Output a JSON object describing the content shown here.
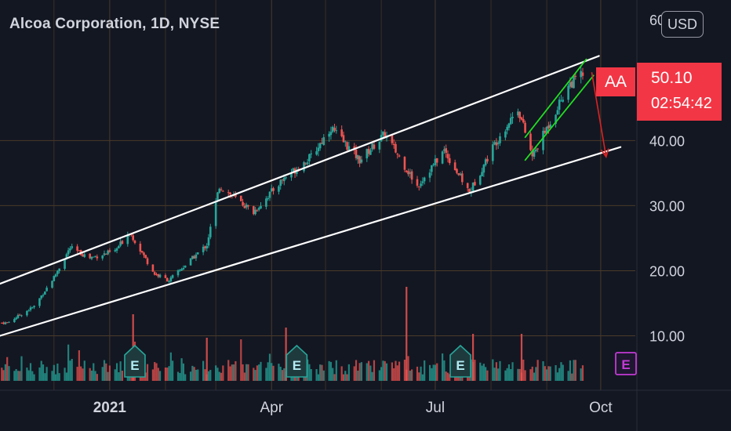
{
  "header": {
    "title": "Alcoa Corporation, 1D, NYSE",
    "currency": "USD",
    "top_partial_label": "60"
  },
  "price_tag": {
    "ticker": "AA",
    "last_price": "50.10",
    "countdown": "02:54:42"
  },
  "colors": {
    "background": "#131722",
    "up": "#26a69a",
    "down": "#ef5350",
    "grid": "#4a3a2a",
    "channel": "#ffffff",
    "wedge": "#22dd22",
    "arrow": "#dd2222",
    "earnings_teal": "#26a69a",
    "earnings_purple": "#c33ad3",
    "tag": "#f23645"
  },
  "icons": {
    "earnings_past": "earnings-e-icon",
    "earnings_future": "earnings-e-future-icon"
  },
  "chart_data": {
    "type": "candlestick",
    "title": "Alcoa Corporation, 1D, NYSE",
    "y_axis_labels": [
      "10.00",
      "20.00",
      "30.00",
      "40.00"
    ],
    "ylim": [
      5,
      61
    ],
    "x_axis_labels": [
      "2021",
      "Apr",
      "Jul",
      "Oct"
    ],
    "x_start": "2020-11-01",
    "x_end": "2021-10-15",
    "last_price": 50.1,
    "series": [
      {
        "name": "price_close",
        "values": [
          [
            "2020-11-05",
            12.0
          ],
          [
            "2020-11-20",
            14.5
          ],
          [
            "2020-12-01",
            19.0
          ],
          [
            "2020-12-10",
            23.5
          ],
          [
            "2020-12-21",
            22.0
          ],
          [
            "2021-01-04",
            23.0
          ],
          [
            "2021-01-12",
            26.0
          ],
          [
            "2021-01-26",
            19.5
          ],
          [
            "2021-02-03",
            18.5
          ],
          [
            "2021-02-24",
            24.0
          ],
          [
            "2021-03-03",
            33.0
          ],
          [
            "2021-03-22",
            29.0
          ],
          [
            "2021-04-07",
            34.0
          ],
          [
            "2021-04-23",
            37.5
          ],
          [
            "2021-05-04",
            42.0
          ],
          [
            "2021-05-20",
            37.0
          ],
          [
            "2021-06-03",
            41.0
          ],
          [
            "2021-06-21",
            33.0
          ],
          [
            "2021-07-06",
            38.5
          ],
          [
            "2021-07-20",
            32.0
          ],
          [
            "2021-08-03",
            39.5
          ],
          [
            "2021-08-16",
            45.0
          ],
          [
            "2021-08-24",
            37.5
          ],
          [
            "2021-09-13",
            48.5
          ],
          [
            "2021-09-20",
            50.1
          ]
        ]
      }
    ],
    "drawings": {
      "channel_upper": [
        [
          "2020-11-01",
          18.0
        ],
        [
          "2021-09-30",
          53.0
        ]
      ],
      "channel_lower": [
        [
          "2020-11-01",
          10.0
        ],
        [
          "2021-10-12",
          39.0
        ]
      ],
      "wedge_upper": [
        [
          "2021-08-20",
          40.5
        ],
        [
          "2021-09-23",
          52.5
        ]
      ],
      "wedge_lower": [
        [
          "2021-08-20",
          37.0
        ],
        [
          "2021-09-27",
          50.0
        ]
      ],
      "arrow": [
        [
          "2021-09-26",
          50.5
        ],
        [
          "2021-10-04",
          37.5
        ]
      ]
    },
    "earnings_events": [
      {
        "date": "2021-01-15",
        "label": "E",
        "status": "past"
      },
      {
        "date": "2021-04-15",
        "label": "E",
        "status": "past"
      },
      {
        "date": "2021-07-15",
        "label": "E",
        "status": "past"
      },
      {
        "date": "2021-10-15",
        "label": "E",
        "status": "upcoming"
      }
    ],
    "grid": true
  }
}
